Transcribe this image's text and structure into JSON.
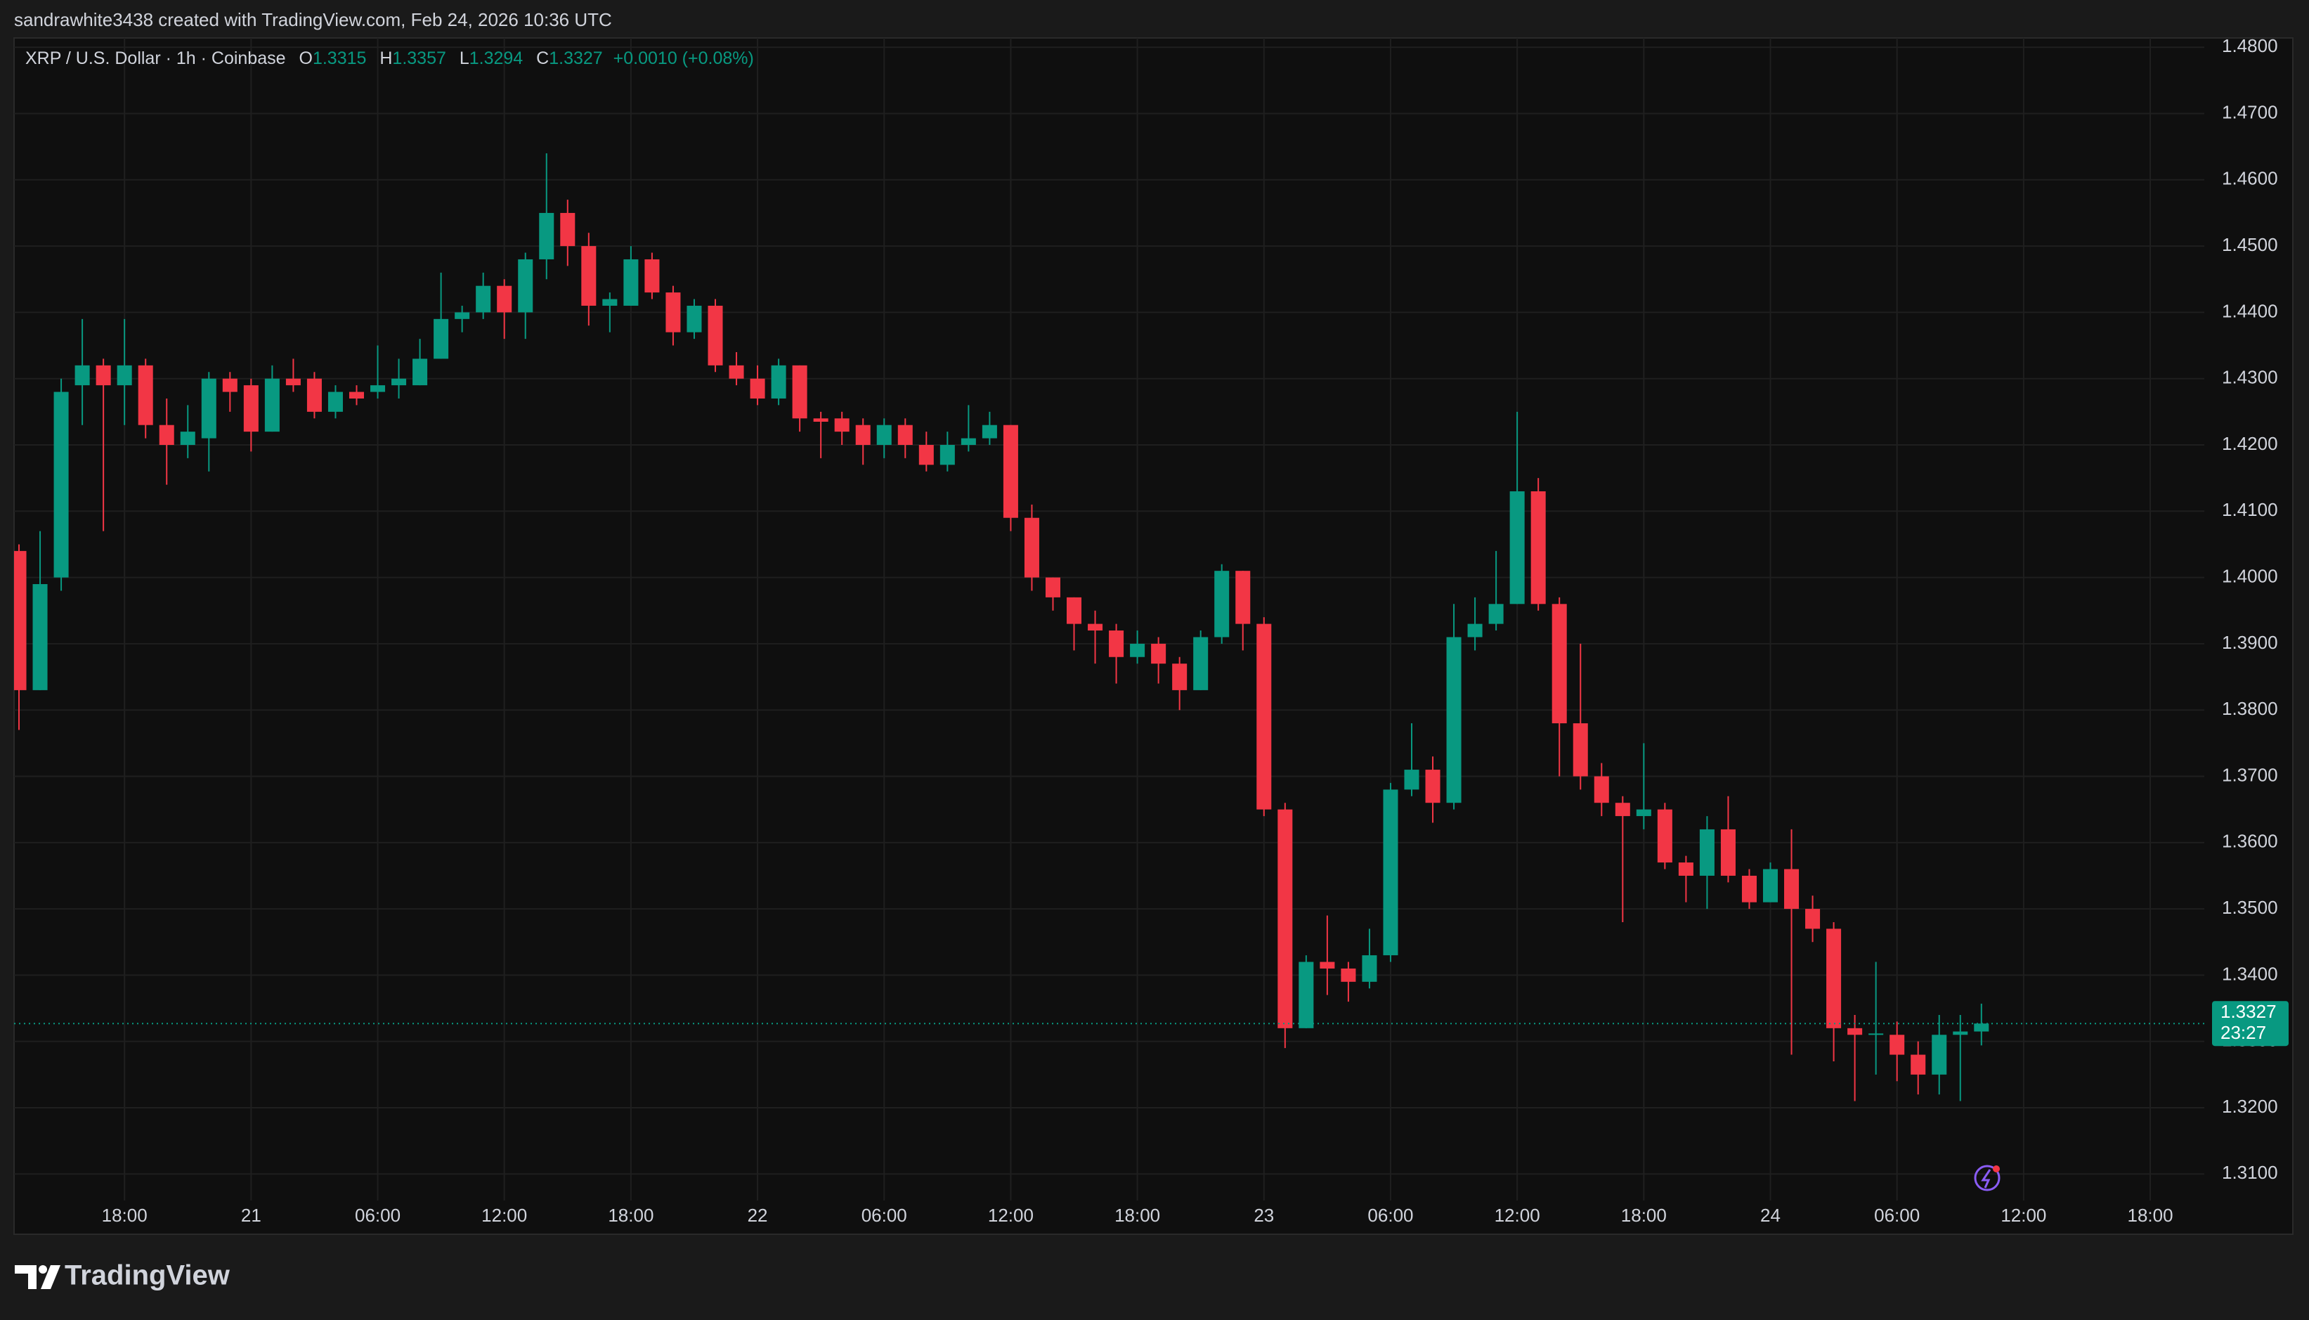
{
  "header": {
    "text": "sandrawhite3438 created with TradingView.com, Feb 24, 2026 10:36 UTC"
  },
  "footer": {
    "brand": "TradingView"
  },
  "chart_data": {
    "type": "candlestick",
    "title": "XRP / U.S. Dollar · 1h · Coinbase",
    "ohlc_labels": [
      "O",
      "H",
      "L",
      "C"
    ],
    "change": "+0.0010 (+0.08%)",
    "countdown": "23:27",
    "colors": {
      "up": "#089981",
      "down": "#f23645"
    },
    "grid": true,
    "categories": [
      null,
      null,
      null,
      null,
      null,
      "18:00",
      null,
      null,
      null,
      null,
      null,
      "21",
      null,
      null,
      null,
      null,
      null,
      "06:00",
      null,
      null,
      null,
      null,
      null,
      "12:00",
      null,
      null,
      null,
      null,
      null,
      "18:00",
      null,
      null,
      null,
      null,
      null,
      "22",
      null,
      null,
      null,
      null,
      null,
      "06:00",
      null,
      null,
      null,
      null,
      null,
      "12:00",
      null,
      null,
      null,
      null,
      null,
      "18:00",
      null,
      null,
      null,
      null,
      null,
      "23",
      null,
      null,
      null,
      null,
      null,
      "06:00",
      null,
      null,
      null,
      null,
      null,
      "12:00",
      null,
      null,
      null,
      null,
      null,
      "18:00",
      null,
      null,
      null,
      null,
      null,
      "24",
      null,
      null,
      null,
      null,
      null,
      "06:00",
      null,
      null,
      null,
      null,
      null,
      "12:00",
      null,
      null,
      null,
      null,
      null,
      "18:00",
      null,
      null
    ],
    "open": [
      1.404,
      1.383,
      1.4,
      1.429,
      1.432,
      1.429,
      1.432,
      1.423,
      1.42,
      1.421,
      1.43,
      1.429,
      1.422,
      1.43,
      1.43,
      1.425,
      1.428,
      1.428,
      1.429,
      1.429,
      1.433,
      1.439,
      1.44,
      1.444,
      1.44,
      1.448,
      1.455,
      1.45,
      1.441,
      1.441,
      1.448,
      1.443,
      1.437,
      1.441,
      1.432,
      1.43,
      1.427,
      1.432,
      1.424,
      1.424,
      1.423,
      1.42,
      1.423,
      1.42,
      1.417,
      1.42,
      1.421,
      1.423,
      1.409,
      1.4,
      1.397,
      1.393,
      1.392,
      1.388,
      1.39,
      1.387,
      1.383,
      1.391,
      1.401,
      1.393,
      1.365,
      1.332,
      1.342,
      1.341,
      1.339,
      1.343,
      1.368,
      1.371,
      1.366,
      1.391,
      1.393,
      1.396,
      1.413,
      1.396,
      1.378,
      1.37,
      1.366,
      1.364,
      1.365,
      1.357,
      1.355,
      1.362,
      1.355,
      1.351,
      1.356,
      1.35,
      1.347,
      1.332,
      1.331,
      1.331,
      1.328,
      1.325,
      1.331,
      1.3315,
      null,
      null,
      null,
      null,
      null,
      null,
      null,
      null,
      null,
      null
    ],
    "high": [
      1.405,
      1.407,
      1.43,
      1.439,
      1.433,
      1.439,
      1.433,
      1.427,
      1.426,
      1.431,
      1.431,
      1.43,
      1.432,
      1.433,
      1.431,
      1.429,
      1.429,
      1.435,
      1.433,
      1.436,
      1.446,
      1.441,
      1.446,
      1.445,
      1.449,
      1.464,
      1.457,
      1.452,
      1.443,
      1.45,
      1.449,
      1.444,
      1.442,
      1.442,
      1.434,
      1.432,
      1.433,
      1.432,
      1.425,
      1.425,
      1.424,
      1.424,
      1.424,
      1.422,
      1.422,
      1.426,
      1.425,
      1.423,
      1.411,
      1.4,
      1.397,
      1.395,
      1.393,
      1.392,
      1.391,
      1.388,
      1.392,
      1.402,
      1.401,
      1.394,
      1.366,
      1.343,
      1.349,
      1.342,
      1.347,
      1.369,
      1.378,
      1.373,
      1.396,
      1.397,
      1.404,
      1.425,
      1.415,
      1.397,
      1.39,
      1.372,
      1.367,
      1.375,
      1.366,
      1.358,
      1.364,
      1.367,
      1.356,
      1.357,
      1.362,
      1.352,
      1.348,
      1.334,
      1.342,
      1.333,
      1.33,
      1.334,
      1.334,
      1.3357,
      null,
      null,
      null,
      null,
      null,
      null,
      null,
      null,
      null,
      null
    ],
    "low": [
      1.377,
      1.383,
      1.398,
      1.423,
      1.407,
      1.423,
      1.421,
      1.414,
      1.418,
      1.416,
      1.425,
      1.419,
      1.422,
      1.428,
      1.424,
      1.424,
      1.426,
      1.427,
      1.427,
      1.429,
      1.433,
      1.437,
      1.439,
      1.436,
      1.436,
      1.445,
      1.447,
      1.438,
      1.437,
      1.441,
      1.442,
      1.435,
      1.436,
      1.431,
      1.429,
      1.426,
      1.426,
      1.422,
      1.418,
      1.42,
      1.417,
      1.418,
      1.418,
      1.416,
      1.416,
      1.419,
      1.42,
      1.407,
      1.398,
      1.395,
      1.389,
      1.387,
      1.384,
      1.387,
      1.384,
      1.38,
      1.383,
      1.39,
      1.389,
      1.364,
      1.329,
      1.332,
      1.337,
      1.336,
      1.338,
      1.342,
      1.367,
      1.363,
      1.365,
      1.389,
      1.392,
      1.396,
      1.395,
      1.37,
      1.368,
      1.364,
      1.348,
      1.362,
      1.356,
      1.351,
      1.35,
      1.354,
      1.35,
      1.351,
      1.328,
      1.345,
      1.327,
      1.321,
      1.325,
      1.324,
      1.322,
      1.322,
      1.321,
      1.3294,
      null,
      null,
      null,
      null,
      null,
      null,
      null,
      null,
      null,
      null
    ],
    "close": [
      1.383,
      1.399,
      1.428,
      1.432,
      1.429,
      1.432,
      1.423,
      1.42,
      1.422,
      1.43,
      1.428,
      1.422,
      1.43,
      1.429,
      1.425,
      1.428,
      1.427,
      1.429,
      1.43,
      1.433,
      1.439,
      1.44,
      1.444,
      1.44,
      1.448,
      1.455,
      1.45,
      1.441,
      1.442,
      1.448,
      1.443,
      1.437,
      1.441,
      1.432,
      1.43,
      1.427,
      1.432,
      1.424,
      1.4235,
      1.422,
      1.42,
      1.423,
      1.42,
      1.417,
      1.42,
      1.421,
      1.423,
      1.409,
      1.4,
      1.397,
      1.393,
      1.392,
      1.388,
      1.39,
      1.387,
      1.383,
      1.391,
      1.401,
      1.393,
      1.365,
      1.332,
      1.342,
      1.341,
      1.339,
      1.343,
      1.368,
      1.371,
      1.366,
      1.391,
      1.393,
      1.396,
      1.413,
      1.396,
      1.378,
      1.37,
      1.366,
      1.364,
      1.365,
      1.357,
      1.355,
      1.362,
      1.355,
      1.351,
      1.356,
      1.35,
      1.347,
      1.332,
      1.331,
      1.3312,
      1.328,
      1.325,
      1.331,
      1.3315,
      1.3327,
      null,
      null,
      null,
      null,
      null,
      null,
      null,
      null,
      null,
      null
    ],
    "ylim": [
      1.306,
      1.4814
    ],
    "yticks": [
      {
        "value": 1.31,
        "label": "1.3100"
      },
      {
        "value": 1.32,
        "label": "1.3200"
      },
      {
        "value": 1.33,
        "label": "1.3300"
      },
      {
        "value": 1.34,
        "label": "1.3400"
      },
      {
        "value": 1.35,
        "label": "1.3500"
      },
      {
        "value": 1.36,
        "label": "1.3600"
      },
      {
        "value": 1.37,
        "label": "1.3700"
      },
      {
        "value": 1.38,
        "label": "1.3800"
      },
      {
        "value": 1.39,
        "label": "1.3900"
      },
      {
        "value": 1.4,
        "label": "1.4000"
      },
      {
        "value": 1.41,
        "label": "1.4100"
      },
      {
        "value": 1.42,
        "label": "1.4200"
      },
      {
        "value": 1.43,
        "label": "1.4300"
      },
      {
        "value": 1.44,
        "label": "1.4400"
      },
      {
        "value": 1.45,
        "label": "1.4500"
      },
      {
        "value": 1.46,
        "label": "1.4600"
      },
      {
        "value": 1.47,
        "label": "1.4700"
      },
      {
        "value": 1.48,
        "label": "1.4800"
      }
    ]
  }
}
